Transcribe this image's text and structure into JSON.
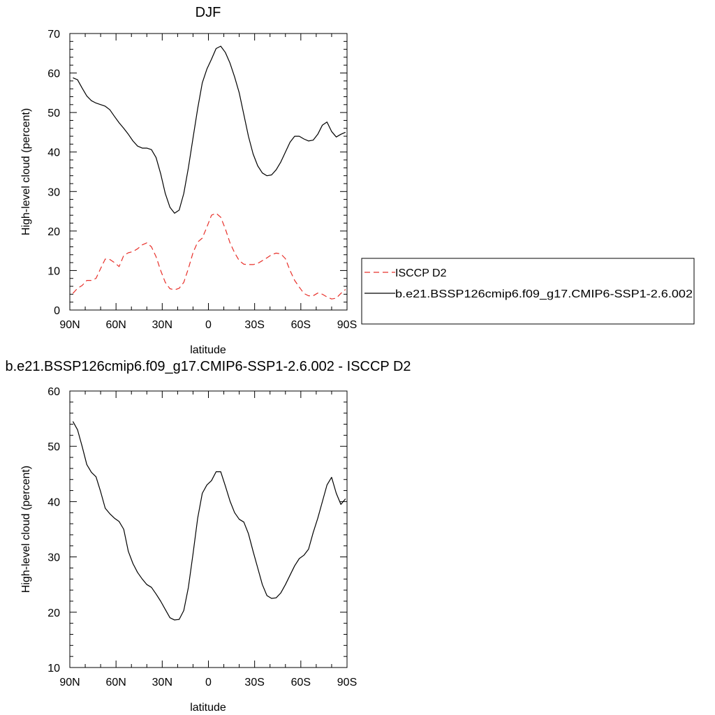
{
  "chart_data": [
    {
      "type": "line",
      "title": "DJF",
      "xlabel": "latitude",
      "ylabel": "High-level cloud (percent)",
      "xlim": [
        90,
        -90
      ],
      "ylim": [
        0,
        70
      ],
      "x_ticks": [
        {
          "value": 90,
          "label": "90N"
        },
        {
          "value": 60,
          "label": "60N"
        },
        {
          "value": 30,
          "label": "30N"
        },
        {
          "value": 0,
          "label": "0"
        },
        {
          "value": -30,
          "label": "30S"
        },
        {
          "value": -60,
          "label": "60S"
        },
        {
          "value": -90,
          "label": "90S"
        }
      ],
      "y_ticks": [
        0,
        10,
        20,
        30,
        40,
        50,
        60,
        70
      ],
      "grid": false,
      "legend_position": "right",
      "series": [
        {
          "name": "ISCCP D2",
          "style": "dashed",
          "color": "#e8302a",
          "x": [
            88,
            85,
            82,
            79,
            76,
            73,
            70,
            67,
            64,
            61,
            58,
            55,
            52,
            49,
            46,
            43,
            40,
            37,
            34,
            31,
            28,
            25,
            22,
            19,
            16,
            13,
            10,
            7,
            4,
            1,
            -2,
            -5,
            -8,
            -11,
            -14,
            -17,
            -20,
            -23,
            -26,
            -29,
            -32,
            -35,
            -38,
            -41,
            -44,
            -47,
            -50,
            -53,
            -56,
            -59,
            -62,
            -65,
            -68,
            -71,
            -74,
            -77,
            -80,
            -83,
            -86,
            -89
          ],
          "y": [
            4.2,
            5.5,
            6.2,
            7.5,
            7.5,
            8.0,
            10.5,
            12.9,
            12.8,
            12.0,
            11.0,
            13.8,
            14.5,
            14.8,
            15.5,
            16.5,
            17.0,
            16.0,
            13.5,
            10.0,
            7.0,
            5.4,
            5.1,
            5.5,
            7.0,
            10.5,
            14.5,
            17.2,
            18.2,
            21.0,
            24.0,
            24.5,
            23.5,
            20.5,
            17.0,
            14.5,
            12.5,
            11.6,
            11.5,
            11.5,
            11.8,
            12.5,
            13.2,
            14.0,
            14.4,
            14.2,
            13.0,
            10.0,
            7.5,
            5.8,
            4.2,
            3.6,
            3.6,
            4.3,
            4.0,
            3.3,
            2.8,
            3.0,
            4.2,
            5.2
          ]
        },
        {
          "name": "b.e21.BSSP126cmip6.f09_g17.CMIP6-SSP1-2.6.002",
          "style": "solid",
          "color": "#000000",
          "x": [
            88,
            85,
            82,
            79,
            76,
            73,
            70,
            67,
            64,
            61,
            58,
            55,
            52,
            49,
            46,
            43,
            40,
            37,
            34,
            31,
            28,
            25,
            22,
            19,
            16,
            13,
            10,
            7,
            4,
            1,
            -2,
            -5,
            -8,
            -11,
            -14,
            -17,
            -20,
            -23,
            -26,
            -29,
            -32,
            -35,
            -38,
            -41,
            -44,
            -47,
            -50,
            -53,
            -56,
            -59,
            -62,
            -65,
            -68,
            -71,
            -74,
            -77,
            -80,
            -83,
            -86,
            -89
          ],
          "y": [
            58.8,
            58.3,
            56.2,
            54.2,
            53.0,
            52.4,
            52.0,
            51.6,
            50.7,
            49.0,
            47.4,
            46.0,
            44.5,
            42.8,
            41.5,
            41.0,
            41.0,
            40.6,
            38.6,
            34.5,
            29.5,
            26.0,
            24.5,
            25.3,
            29.5,
            36.0,
            43.5,
            51.0,
            57.5,
            61.0,
            63.5,
            66.2,
            66.8,
            65.2,
            62.5,
            59.0,
            55.0,
            49.5,
            44.0,
            39.5,
            36.5,
            34.7,
            34.0,
            34.2,
            35.5,
            37.5,
            40.0,
            42.5,
            44.0,
            44.0,
            43.3,
            42.8,
            43.0,
            44.5,
            46.8,
            47.6,
            45.2,
            43.8,
            44.5,
            45.0
          ]
        }
      ]
    },
    {
      "type": "line",
      "title": "b.e21.BSSP126cmip6.f09_g17.CMIP6-SSP1-2.6.002 - ISCCP D2",
      "xlabel": "latitude",
      "ylabel": "High-level cloud (percent)",
      "xlim": [
        90,
        -90
      ],
      "ylim": [
        10,
        60
      ],
      "x_ticks": [
        {
          "value": 90,
          "label": "90N"
        },
        {
          "value": 60,
          "label": "60N"
        },
        {
          "value": 30,
          "label": "30N"
        },
        {
          "value": 0,
          "label": "0"
        },
        {
          "value": -30,
          "label": "30S"
        },
        {
          "value": -60,
          "label": "60S"
        },
        {
          "value": -90,
          "label": "90S"
        }
      ],
      "y_ticks": [
        10,
        20,
        30,
        40,
        50,
        60
      ],
      "grid": false,
      "series": [
        {
          "style": "solid",
          "color": "#000000",
          "x": [
            88,
            85,
            82,
            79,
            76,
            73,
            70,
            67,
            64,
            61,
            58,
            55,
            52,
            49,
            46,
            43,
            40,
            37,
            34,
            31,
            28,
            25,
            22,
            19,
            16,
            13,
            10,
            7,
            4,
            1,
            -2,
            -5,
            -8,
            -11,
            -14,
            -17,
            -20,
            -23,
            -26,
            -29,
            -32,
            -35,
            -38,
            -41,
            -44,
            -47,
            -50,
            -53,
            -56,
            -59,
            -62,
            -65,
            -68,
            -71,
            -74,
            -77,
            -80,
            -83,
            -86,
            -89
          ],
          "y": [
            54.5,
            53.0,
            50.0,
            46.7,
            45.3,
            44.5,
            41.8,
            38.8,
            37.8,
            37.0,
            36.4,
            35.0,
            31.0,
            28.8,
            27.2,
            26.0,
            25.0,
            24.5,
            23.3,
            22.0,
            20.5,
            19.0,
            18.6,
            18.7,
            20.3,
            24.5,
            30.5,
            37.0,
            41.5,
            43.0,
            43.8,
            45.4,
            45.4,
            42.8,
            40.1,
            38.0,
            36.8,
            36.3,
            34.2,
            31.0,
            28.0,
            25.0,
            23.0,
            22.5,
            22.6,
            23.5,
            25.0,
            26.7,
            28.4,
            29.7,
            30.3,
            31.4,
            34.4,
            37.0,
            40.0,
            43.0,
            44.4,
            41.5,
            39.5,
            40.5
          ]
        }
      ]
    }
  ]
}
